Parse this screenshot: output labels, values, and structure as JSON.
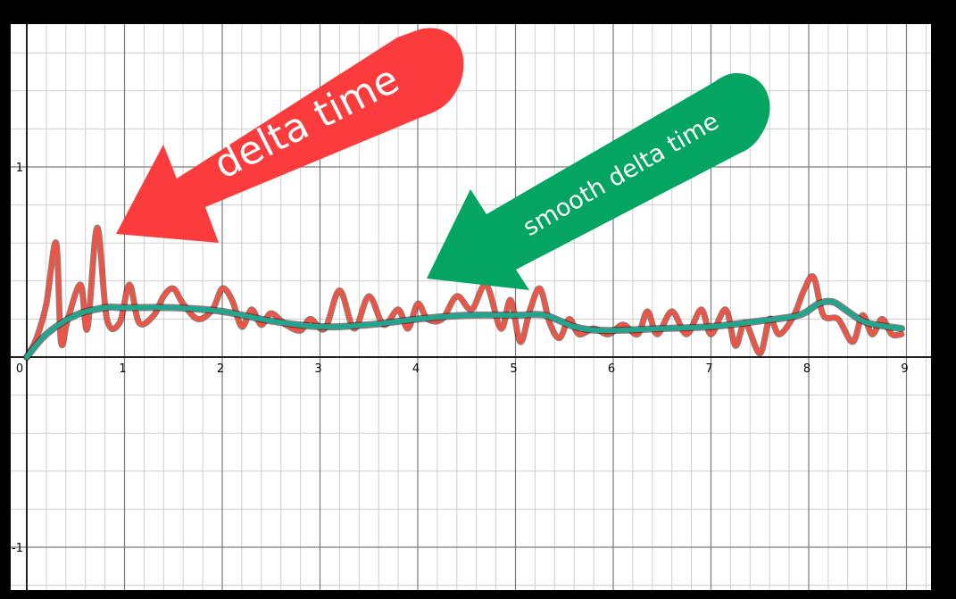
{
  "chart_data": {
    "type": "line",
    "title": "",
    "xlabel": "",
    "ylabel": "",
    "xlim": [
      0,
      9.2
    ],
    "ylim": [
      -1.2,
      1.75
    ],
    "x_ticks": [
      "0",
      "1",
      "2",
      "3",
      "4",
      "5",
      "6",
      "7",
      "8",
      "9"
    ],
    "y_ticks": [
      "1",
      "-1"
    ],
    "grid": true,
    "series": [
      {
        "name": "delta time",
        "color": "#f25241",
        "points": [
          [
            0.0,
            0.0
          ],
          [
            0.1,
            0.1
          ],
          [
            0.2,
            0.28
          ],
          [
            0.3,
            0.6
          ],
          [
            0.35,
            0.08
          ],
          [
            0.42,
            0.2
          ],
          [
            0.55,
            0.38
          ],
          [
            0.62,
            0.15
          ],
          [
            0.72,
            0.68
          ],
          [
            0.82,
            0.2
          ],
          [
            0.95,
            0.18
          ],
          [
            1.05,
            0.38
          ],
          [
            1.15,
            0.18
          ],
          [
            1.3,
            0.22
          ],
          [
            1.4,
            0.32
          ],
          [
            1.5,
            0.36
          ],
          [
            1.6,
            0.28
          ],
          [
            1.75,
            0.2
          ],
          [
            1.9,
            0.25
          ],
          [
            2.0,
            0.36
          ],
          [
            2.1,
            0.3
          ],
          [
            2.2,
            0.16
          ],
          [
            2.3,
            0.25
          ],
          [
            2.4,
            0.17
          ],
          [
            2.5,
            0.23
          ],
          [
            2.65,
            0.17
          ],
          [
            2.8,
            0.14
          ],
          [
            2.9,
            0.2
          ],
          [
            3.05,
            0.15
          ],
          [
            3.2,
            0.35
          ],
          [
            3.35,
            0.15
          ],
          [
            3.5,
            0.32
          ],
          [
            3.65,
            0.17
          ],
          [
            3.8,
            0.25
          ],
          [
            3.9,
            0.15
          ],
          [
            4.0,
            0.28
          ],
          [
            4.1,
            0.2
          ],
          [
            4.25,
            0.2
          ],
          [
            4.4,
            0.32
          ],
          [
            4.55,
            0.25
          ],
          [
            4.7,
            0.38
          ],
          [
            4.85,
            0.15
          ],
          [
            4.95,
            0.3
          ],
          [
            5.05,
            0.08
          ],
          [
            5.15,
            0.25
          ],
          [
            5.25,
            0.36
          ],
          [
            5.35,
            0.18
          ],
          [
            5.45,
            0.1
          ],
          [
            5.55,
            0.2
          ],
          [
            5.65,
            0.12
          ],
          [
            5.8,
            0.15
          ],
          [
            5.95,
            0.12
          ],
          [
            6.1,
            0.17
          ],
          [
            6.25,
            0.12
          ],
          [
            6.35,
            0.24
          ],
          [
            6.45,
            0.12
          ],
          [
            6.6,
            0.24
          ],
          [
            6.75,
            0.12
          ],
          [
            6.9,
            0.25
          ],
          [
            7.0,
            0.12
          ],
          [
            7.15,
            0.25
          ],
          [
            7.25,
            0.06
          ],
          [
            7.35,
            0.18
          ],
          [
            7.5,
            0.02
          ],
          [
            7.6,
            0.2
          ],
          [
            7.7,
            0.12
          ],
          [
            7.85,
            0.22
          ],
          [
            7.95,
            0.35
          ],
          [
            8.05,
            0.42
          ],
          [
            8.15,
            0.22
          ],
          [
            8.3,
            0.2
          ],
          [
            8.45,
            0.08
          ],
          [
            8.55,
            0.22
          ],
          [
            8.65,
            0.12
          ],
          [
            8.75,
            0.2
          ],
          [
            8.85,
            0.12
          ],
          [
            8.95,
            0.12
          ]
        ]
      },
      {
        "name": "smooth delta time",
        "color": "#21a58e",
        "points": [
          [
            0.0,
            0.0
          ],
          [
            0.2,
            0.12
          ],
          [
            0.5,
            0.22
          ],
          [
            0.8,
            0.26
          ],
          [
            1.0,
            0.26
          ],
          [
            1.5,
            0.26
          ],
          [
            2.0,
            0.24
          ],
          [
            2.5,
            0.19
          ],
          [
            3.0,
            0.16
          ],
          [
            3.5,
            0.17
          ],
          [
            4.0,
            0.2
          ],
          [
            4.5,
            0.22
          ],
          [
            5.0,
            0.22
          ],
          [
            5.3,
            0.22
          ],
          [
            5.6,
            0.16
          ],
          [
            5.9,
            0.14
          ],
          [
            6.5,
            0.15
          ],
          [
            7.0,
            0.16
          ],
          [
            7.5,
            0.19
          ],
          [
            7.9,
            0.22
          ],
          [
            8.1,
            0.28
          ],
          [
            8.25,
            0.29
          ],
          [
            8.4,
            0.24
          ],
          [
            8.6,
            0.18
          ],
          [
            8.95,
            0.15
          ]
        ]
      }
    ],
    "annotations": [
      {
        "text": "delta time",
        "color": "#fc3c3c",
        "points_to": [
          0.85,
          0.68
        ]
      },
      {
        "text": "smooth delta time",
        "color": "#04a562",
        "points_to": [
          4.2,
          0.38
        ]
      }
    ]
  }
}
